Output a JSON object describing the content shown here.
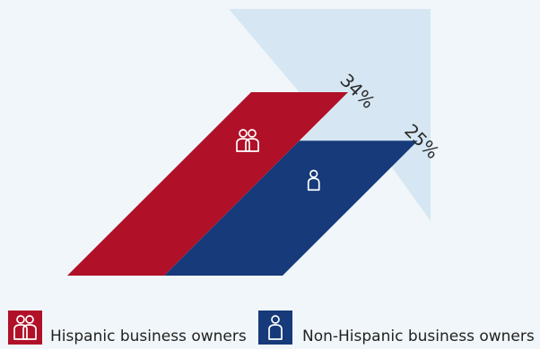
{
  "chart_data": {
    "type": "bar",
    "title": "",
    "categories": [
      "Hispanic business owners",
      "Non-Hispanic business owners"
    ],
    "values": [
      34,
      25
    ],
    "unit": "%",
    "value_labels": [
      "34%",
      "25%"
    ],
    "colors": [
      "#b01128",
      "#163a7a"
    ],
    "arrow_color": "#d6e7f3",
    "icons": [
      "two-people-icon",
      "person-icon"
    ]
  },
  "legend": {
    "items": [
      {
        "label": "Hispanic business owners",
        "icon": "two-people-icon",
        "color": "#b01128"
      },
      {
        "label": "Non-Hispanic business owners",
        "icon": "person-icon",
        "color": "#163a7a"
      }
    ]
  }
}
